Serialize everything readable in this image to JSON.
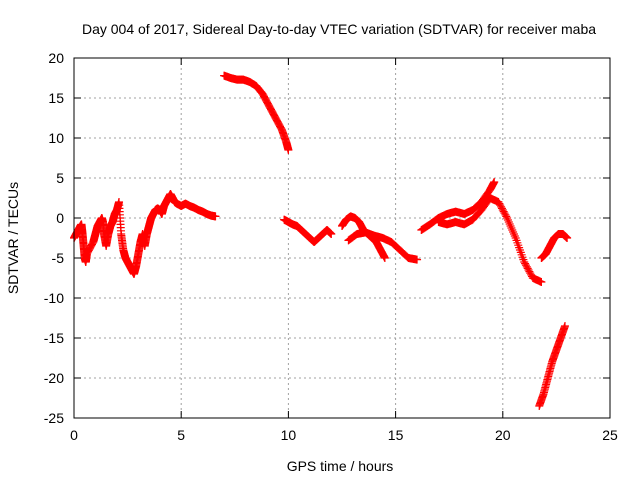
{
  "chart_data": {
    "type": "scatter",
    "title": "Day 004 of 2017, Sidereal Day-to-day VTEC variation (SDTVAR) for receiver maba",
    "xlabel": "GPS time / hours",
    "ylabel": "SDTVAR / TECUs",
    "xlim": [
      0,
      25
    ],
    "ylim": [
      -25,
      20
    ],
    "xticks": [
      0,
      5,
      10,
      15,
      20,
      25
    ],
    "yticks": [
      -25,
      -20,
      -15,
      -10,
      -5,
      0,
      5,
      10,
      15,
      20
    ],
    "grid": true,
    "marker": "+",
    "series_color": "#ff0000",
    "series": [
      {
        "name": "maba",
        "segments": [
          [
            [
              0.0,
              -2.5
            ],
            [
              0.1,
              -2.0
            ],
            [
              0.2,
              -1.5
            ],
            [
              0.3,
              -1.0
            ],
            [
              0.35,
              -0.8
            ],
            [
              0.4,
              -2.0
            ],
            [
              0.45,
              -3.5
            ],
            [
              0.5,
              -5.0
            ],
            [
              0.55,
              -5.5
            ],
            [
              0.6,
              -4.5
            ],
            [
              0.9,
              -3.0
            ],
            [
              1.0,
              -2.0
            ],
            [
              1.1,
              -1.0
            ],
            [
              1.2,
              -0.5
            ],
            [
              1.3,
              0.0
            ],
            [
              1.35,
              -0.5
            ],
            [
              1.4,
              -2.0
            ],
            [
              1.5,
              -3.5
            ],
            [
              1.6,
              -2.0
            ],
            [
              1.7,
              -1.0
            ],
            [
              1.8,
              -0.5
            ],
            [
              1.9,
              0.5
            ],
            [
              2.0,
              1.0
            ],
            [
              2.1,
              2.0
            ],
            [
              2.2,
              -2.0
            ],
            [
              2.3,
              -4.0
            ],
            [
              2.4,
              -5.0
            ],
            [
              2.5,
              -5.5
            ],
            [
              2.6,
              -6.0
            ],
            [
              2.7,
              -6.5
            ],
            [
              2.8,
              -7.0
            ],
            [
              2.9,
              -6.0
            ],
            [
              3.0,
              -4.5
            ],
            [
              3.1,
              -3.0
            ],
            [
              3.2,
              -2.0
            ],
            [
              3.3,
              -3.5
            ],
            [
              3.4,
              -2.0
            ],
            [
              3.5,
              -1.0
            ],
            [
              3.6,
              0.0
            ],
            [
              3.7,
              0.5
            ],
            [
              3.8,
              1.0
            ],
            [
              3.9,
              1.2
            ],
            [
              4.0,
              1.0
            ],
            [
              4.1,
              0.5
            ],
            [
              4.2,
              1.5
            ],
            [
              4.3,
              2.0
            ],
            [
              4.4,
              2.5
            ],
            [
              4.5,
              3.0
            ],
            [
              4.6,
              2.5
            ],
            [
              4.7,
              2.0
            ],
            [
              4.8,
              1.8
            ],
            [
              5.0,
              1.5
            ],
            [
              5.2,
              1.8
            ],
            [
              5.4,
              1.5
            ],
            [
              5.6,
              1.3
            ],
            [
              5.8,
              1.0
            ],
            [
              6.0,
              0.8
            ],
            [
              6.2,
              0.5
            ],
            [
              6.4,
              0.3
            ],
            [
              6.6,
              0.2
            ]
          ],
          [
            [
              7.0,
              17.8
            ],
            [
              7.3,
              17.5
            ],
            [
              7.6,
              17.3
            ],
            [
              7.9,
              17.3
            ],
            [
              8.2,
              17.0
            ],
            [
              8.5,
              16.5
            ],
            [
              8.8,
              15.5
            ],
            [
              9.1,
              14.0
            ],
            [
              9.4,
              12.5
            ],
            [
              9.7,
              11.0
            ],
            [
              9.9,
              9.5
            ],
            [
              10.0,
              8.5
            ]
          ],
          [
            [
              9.8,
              -0.2
            ],
            [
              10.0,
              -0.5
            ],
            [
              10.2,
              -0.8
            ],
            [
              10.4,
              -1.0
            ],
            [
              10.6,
              -1.5
            ],
            [
              10.8,
              -2.0
            ],
            [
              11.0,
              -2.5
            ],
            [
              11.2,
              -3.0
            ],
            [
              11.4,
              -2.5
            ],
            [
              11.6,
              -2.0
            ],
            [
              11.8,
              -1.5
            ],
            [
              12.0,
              -2.0
            ]
          ],
          [
            [
              12.5,
              -1.0
            ],
            [
              12.7,
              -0.2
            ],
            [
              12.9,
              0.2
            ],
            [
              13.1,
              0.0
            ],
            [
              13.3,
              -0.5
            ],
            [
              13.5,
              -1.5
            ],
            [
              13.7,
              -2.0
            ],
            [
              13.9,
              -2.5
            ],
            [
              14.1,
              -3.0
            ],
            [
              14.3,
              -4.0
            ],
            [
              14.5,
              -5.0
            ]
          ],
          [
            [
              12.8,
              -2.8
            ],
            [
              13.2,
              -2.0
            ],
            [
              13.6,
              -1.8
            ],
            [
              14.0,
              -2.2
            ],
            [
              14.4,
              -2.5
            ],
            [
              14.8,
              -3.0
            ],
            [
              15.2,
              -4.0
            ],
            [
              15.6,
              -5.0
            ],
            [
              16.0,
              -5.2
            ]
          ],
          [
            [
              16.2,
              -1.5
            ],
            [
              16.6,
              -0.8
            ],
            [
              17.0,
              0.0
            ],
            [
              17.4,
              0.5
            ],
            [
              17.8,
              0.8
            ],
            [
              18.2,
              0.5
            ],
            [
              18.6,
              1.0
            ],
            [
              19.0,
              2.0
            ],
            [
              19.4,
              3.5
            ],
            [
              19.6,
              4.5
            ]
          ],
          [
            [
              17.0,
              -0.5
            ],
            [
              17.4,
              -0.8
            ],
            [
              17.8,
              -0.5
            ],
            [
              18.2,
              -0.8
            ],
            [
              18.6,
              -0.2
            ],
            [
              19.0,
              1.0
            ],
            [
              19.4,
              2.5
            ],
            [
              19.8,
              2.0
            ],
            [
              20.2,
              0.0
            ],
            [
              20.6,
              -2.5
            ],
            [
              21.0,
              -5.5
            ],
            [
              21.4,
              -7.5
            ],
            [
              21.8,
              -8.0
            ]
          ],
          [
            [
              21.8,
              -5.0
            ],
            [
              22.0,
              -4.5
            ],
            [
              22.2,
              -3.5
            ],
            [
              22.4,
              -2.5
            ],
            [
              22.6,
              -2.0
            ],
            [
              22.8,
              -2.0
            ],
            [
              23.0,
              -2.5
            ]
          ],
          [
            [
              21.7,
              -23.5
            ],
            [
              21.9,
              -22.0
            ],
            [
              22.1,
              -20.0
            ],
            [
              22.3,
              -18.0
            ],
            [
              22.5,
              -16.5
            ],
            [
              22.7,
              -15.0
            ],
            [
              22.9,
              -13.5
            ]
          ]
        ]
      }
    ]
  }
}
